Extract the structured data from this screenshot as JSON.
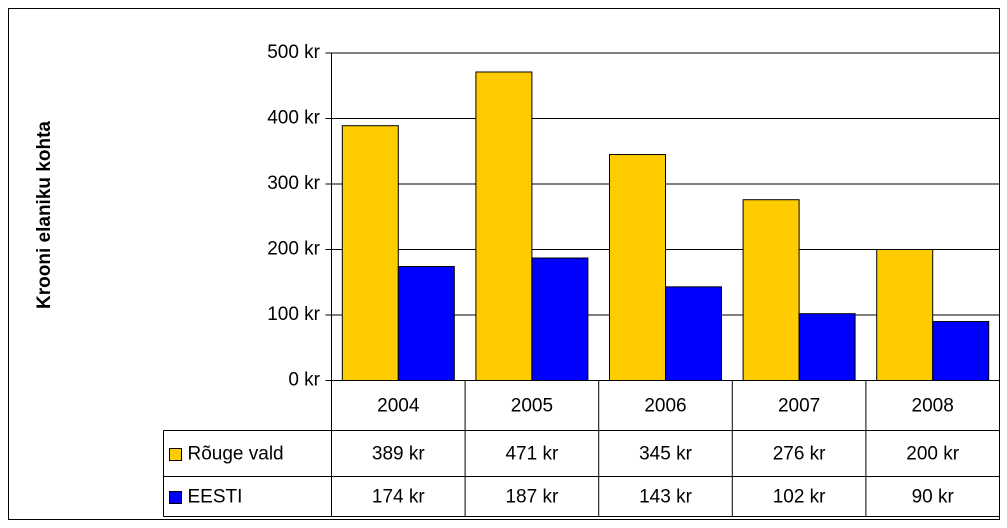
{
  "chart_data": {
    "type": "bar",
    "y_label": "Krooni elaniku kohta",
    "categories": [
      "2004",
      "2005",
      "2006",
      "2007",
      "2008"
    ],
    "series": [
      {
        "name": "Rõuge vald",
        "color": "#ffcc00",
        "values": [
          389,
          471,
          345,
          276,
          200
        ],
        "value_labels": [
          "389 kr",
          "471 kr",
          "345 kr",
          "276 kr",
          "200 kr"
        ]
      },
      {
        "name": "EESTI",
        "color": "#0000ff",
        "values": [
          174,
          187,
          143,
          102,
          90
        ],
        "value_labels": [
          "174 kr",
          "187 kr",
          "143 kr",
          "102 kr",
          "90 kr"
        ]
      }
    ],
    "ylim": [
      0,
      500
    ],
    "yticks": [
      {
        "value": 0,
        "label": "0 kr"
      },
      {
        "value": 100,
        "label": "100 kr"
      },
      {
        "value": 200,
        "label": "200 kr"
      },
      {
        "value": 300,
        "label": "300 kr"
      },
      {
        "value": 400,
        "label": "400 kr"
      },
      {
        "value": 500,
        "label": "500 kr"
      }
    ],
    "grid": true
  }
}
